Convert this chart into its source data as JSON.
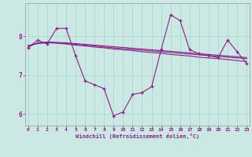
{
  "xlabel": "Windchill (Refroidissement éolien,°C)",
  "bg_color": "#cce8e4",
  "line_color": "#882288",
  "grid_color": "#aad8d4",
  "hours": [
    0,
    1,
    2,
    3,
    4,
    5,
    6,
    7,
    8,
    9,
    10,
    11,
    12,
    13,
    14,
    15,
    16,
    17,
    18,
    19,
    20,
    21,
    22,
    23
  ],
  "main_data": [
    7.7,
    7.9,
    7.8,
    8.2,
    8.2,
    7.5,
    6.85,
    6.75,
    6.65,
    5.95,
    6.05,
    6.5,
    6.55,
    6.7,
    7.65,
    8.55,
    8.4,
    7.65,
    7.55,
    7.5,
    7.45,
    7.9,
    7.6,
    7.3
  ],
  "smooth1": [
    7.72,
    7.83,
    7.85,
    7.84,
    7.83,
    7.81,
    7.79,
    7.77,
    7.75,
    7.73,
    7.71,
    7.69,
    7.67,
    7.65,
    7.63,
    7.61,
    7.59,
    7.57,
    7.55,
    7.53,
    7.51,
    7.49,
    7.47,
    7.45
  ],
  "smooth2": [
    7.74,
    7.82,
    7.84,
    7.83,
    7.81,
    7.79,
    7.77,
    7.75,
    7.72,
    7.7,
    7.68,
    7.66,
    7.64,
    7.62,
    7.6,
    7.58,
    7.56,
    7.54,
    7.52,
    7.5,
    7.48,
    7.46,
    7.44,
    7.42
  ],
  "smooth3": [
    7.76,
    7.81,
    7.83,
    7.82,
    7.8,
    7.77,
    7.75,
    7.72,
    7.7,
    7.67,
    7.65,
    7.63,
    7.6,
    7.58,
    7.56,
    7.53,
    7.51,
    7.49,
    7.46,
    7.44,
    7.42,
    7.4,
    7.37,
    7.35
  ],
  "ylim": [
    5.7,
    8.85
  ],
  "yticks": [
    6,
    7,
    8
  ],
  "xlim": [
    -0.3,
    23.3
  ],
  "xticks": [
    0,
    1,
    2,
    3,
    4,
    5,
    6,
    7,
    8,
    9,
    10,
    11,
    12,
    13,
    14,
    15,
    16,
    17,
    18,
    19,
    20,
    21,
    22,
    23
  ]
}
